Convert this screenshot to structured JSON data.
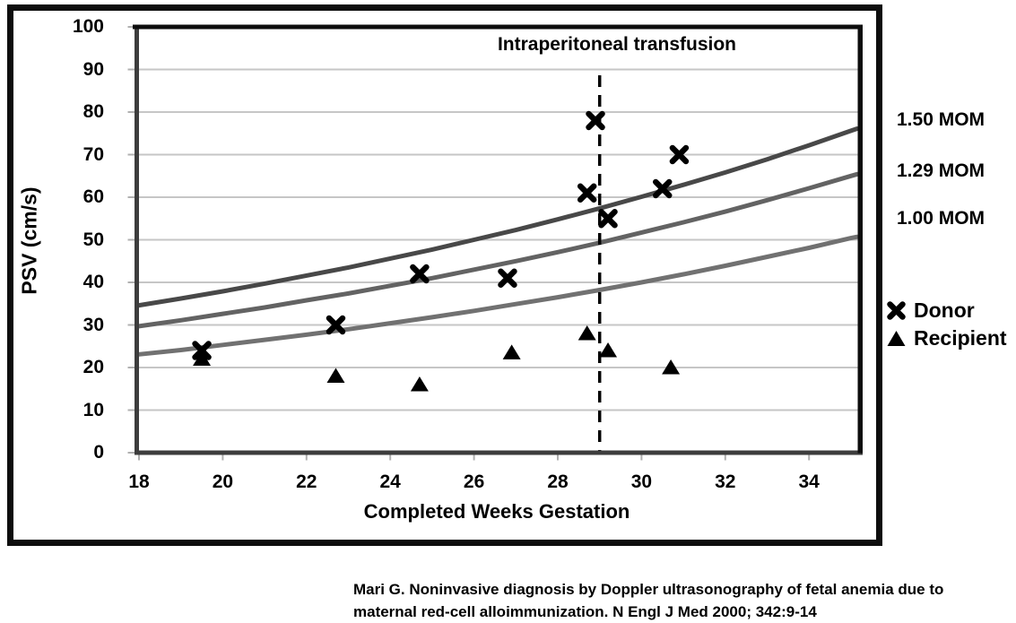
{
  "figure": {
    "title": "Intraperitoneal transfusion",
    "y_axis_label": "PSV (cm/s)",
    "x_axis_label": "Completed Weeks Gestation"
  },
  "legend": {
    "mom_labels": [
      "1.50 MOM",
      "1.29 MOM",
      "1.00 MOM"
    ],
    "donor_label": "Donor",
    "recipient_label": "Recipient"
  },
  "citation": {
    "line1": "Mari G. Noninvasive diagnosis by Doppler ultrasonography of fetal anemia due to",
    "line2": "maternal red-cell alloimmunization. N Engl J Med 2000; 342:9-14"
  },
  "chart_data": {
    "type": "scatter",
    "title": "Intraperitoneal transfusion",
    "xlabel": "Completed Weeks Gestation",
    "ylabel": "PSV (cm/s)",
    "xlim": [
      18,
      35.15
    ],
    "ylim": [
      0,
      100
    ],
    "x_ticks": [
      18,
      20,
      22,
      24,
      26,
      28,
      30,
      32,
      34
    ],
    "y_ticks": [
      0,
      10,
      20,
      30,
      40,
      50,
      60,
      70,
      80,
      90,
      100
    ],
    "grid": "horizontal-only",
    "legend_position": "right-outside",
    "reference_line": {
      "x": 29,
      "style": "dashed-vertical",
      "label": "Intraperitoneal transfusion"
    },
    "curves": {
      "x": [
        18,
        19,
        20,
        21,
        22,
        23,
        24,
        25,
        26,
        27,
        28,
        29,
        30,
        31,
        32,
        33,
        34,
        35,
        35.15
      ],
      "series": [
        {
          "name": "1.50 MOM",
          "color": "#484848",
          "values": [
            34.6,
            36.2,
            37.9,
            39.7,
            41.6,
            43.5,
            45.6,
            47.7,
            50.0,
            52.3,
            54.8,
            57.4,
            60.1,
            62.9,
            65.8,
            68.9,
            72.2,
            75.6,
            76.1
          ]
        },
        {
          "name": "1.29 MOM",
          "color": "#636363",
          "values": [
            29.7,
            31.1,
            32.6,
            34.1,
            35.8,
            37.4,
            39.2,
            41.0,
            43.0,
            45.0,
            47.1,
            49.3,
            51.7,
            54.1,
            56.6,
            59.3,
            62.1,
            65.0,
            65.4
          ]
        },
        {
          "name": "1.00 MOM",
          "color": "#717171",
          "values": [
            23.1,
            24.1,
            25.3,
            26.5,
            27.7,
            29.0,
            30.4,
            31.8,
            33.3,
            34.9,
            36.5,
            38.2,
            40.0,
            41.9,
            43.9,
            46.0,
            48.1,
            50.4,
            50.7
          ]
        }
      ]
    },
    "scatter_series": [
      {
        "name": "Donor",
        "marker": "x",
        "color": "#000000",
        "points": [
          [
            19.5,
            24
          ],
          [
            22.7,
            30
          ],
          [
            24.7,
            42
          ],
          [
            26.8,
            41
          ],
          [
            28.7,
            61
          ],
          [
            28.9,
            78
          ],
          [
            29.2,
            55
          ],
          [
            30.5,
            62
          ],
          [
            30.9,
            70
          ]
        ]
      },
      {
        "name": "Recipient",
        "marker": "triangle",
        "color": "#000000",
        "points": [
          [
            19.5,
            22
          ],
          [
            22.7,
            18
          ],
          [
            24.7,
            16
          ],
          [
            26.9,
            23.5
          ],
          [
            28.7,
            28
          ],
          [
            29.2,
            24
          ],
          [
            30.7,
            20
          ]
        ]
      }
    ],
    "colors": {
      "frame_black": "#0d0d0d",
      "axis_gray": "#3d3d3d",
      "gridline": "#c6c6c6",
      "tick_stub": "#b0b0b0",
      "marker": "#000000"
    }
  }
}
